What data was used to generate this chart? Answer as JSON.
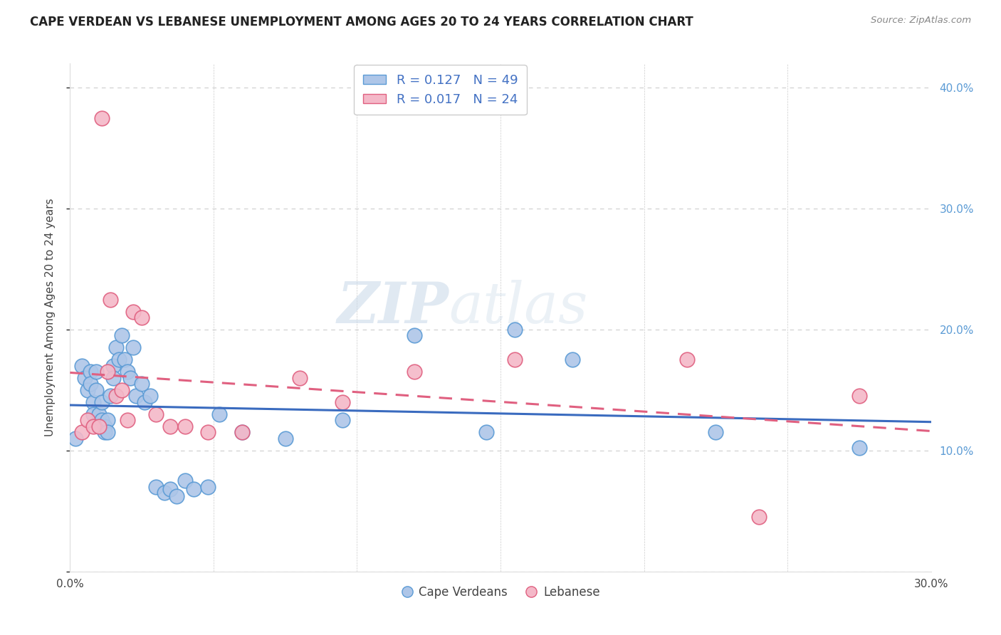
{
  "title": "CAPE VERDEAN VS LEBANESE UNEMPLOYMENT AMONG AGES 20 TO 24 YEARS CORRELATION CHART",
  "source": "Source: ZipAtlas.com",
  "ylabel": "Unemployment Among Ages 20 to 24 years",
  "xlim": [
    0.0,
    0.3
  ],
  "ylim": [
    0.0,
    0.42
  ],
  "xticks": [
    0.0,
    0.05,
    0.1,
    0.15,
    0.2,
    0.25,
    0.3
  ],
  "yticks": [
    0.0,
    0.1,
    0.2,
    0.3,
    0.4
  ],
  "ytick_labels": [
    "",
    "10.0%",
    "20.0%",
    "30.0%",
    "40.0%"
  ],
  "xtick_labels": [
    "0.0%",
    "",
    "",
    "",
    "",
    "",
    "30.0%"
  ],
  "grid_color": "#cccccc",
  "background_color": "#ffffff",
  "cv_color": "#aec6e8",
  "lb_color": "#f4b8c8",
  "cv_edge_color": "#5b9bd5",
  "lb_edge_color": "#e06080",
  "trend_cv_color": "#3a6bbf",
  "trend_lb_color": "#e06080",
  "R_cv": 0.127,
  "N_cv": 49,
  "R_lb": 0.017,
  "N_lb": 24,
  "legend_label_cv": "Cape Verdeans",
  "legend_label_lb": "Lebanese",
  "watermark_zip": "ZIP",
  "watermark_atlas": "atlas",
  "cv_x": [
    0.002,
    0.004,
    0.005,
    0.006,
    0.007,
    0.007,
    0.008,
    0.008,
    0.009,
    0.009,
    0.01,
    0.01,
    0.011,
    0.011,
    0.012,
    0.012,
    0.013,
    0.013,
    0.014,
    0.015,
    0.015,
    0.016,
    0.017,
    0.018,
    0.019,
    0.02,
    0.021,
    0.022,
    0.023,
    0.025,
    0.026,
    0.028,
    0.03,
    0.033,
    0.035,
    0.037,
    0.04,
    0.043,
    0.048,
    0.052,
    0.06,
    0.075,
    0.095,
    0.12,
    0.145,
    0.155,
    0.175,
    0.225,
    0.275
  ],
  "cv_y": [
    0.11,
    0.17,
    0.16,
    0.15,
    0.165,
    0.155,
    0.14,
    0.13,
    0.165,
    0.15,
    0.13,
    0.12,
    0.14,
    0.125,
    0.12,
    0.115,
    0.125,
    0.115,
    0.145,
    0.17,
    0.16,
    0.185,
    0.175,
    0.195,
    0.175,
    0.165,
    0.16,
    0.185,
    0.145,
    0.155,
    0.14,
    0.145,
    0.07,
    0.065,
    0.068,
    0.062,
    0.075,
    0.068,
    0.07,
    0.13,
    0.115,
    0.11,
    0.125,
    0.195,
    0.115,
    0.2,
    0.175,
    0.115,
    0.102
  ],
  "lb_x": [
    0.004,
    0.006,
    0.008,
    0.01,
    0.011,
    0.013,
    0.014,
    0.016,
    0.018,
    0.02,
    0.022,
    0.025,
    0.03,
    0.035,
    0.04,
    0.048,
    0.06,
    0.08,
    0.095,
    0.12,
    0.155,
    0.215,
    0.24,
    0.275
  ],
  "lb_y": [
    0.115,
    0.125,
    0.12,
    0.12,
    0.375,
    0.165,
    0.225,
    0.145,
    0.15,
    0.125,
    0.215,
    0.21,
    0.13,
    0.12,
    0.12,
    0.115,
    0.115,
    0.16,
    0.14,
    0.165,
    0.175,
    0.175,
    0.045,
    0.145
  ]
}
